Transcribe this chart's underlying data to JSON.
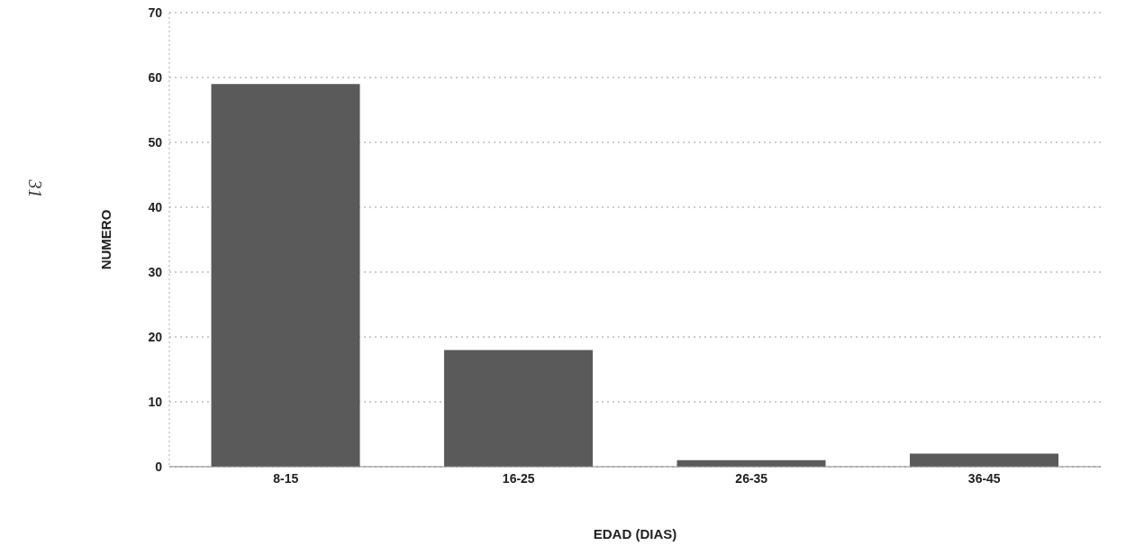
{
  "chart_data": {
    "type": "bar",
    "xlabel": "EDAD (DIAS)",
    "ylabel": "NUMERO",
    "categories": [
      "8-15",
      "16-25",
      "26-35",
      "36-45"
    ],
    "values": [
      59,
      18,
      1,
      2
    ],
    "color": "#5a5a5a",
    "ylim": [
      0,
      70
    ],
    "yticks": [
      0,
      10,
      20,
      30,
      40,
      50,
      60,
      70
    ],
    "grid": "y",
    "annotations": [
      "31"
    ]
  }
}
